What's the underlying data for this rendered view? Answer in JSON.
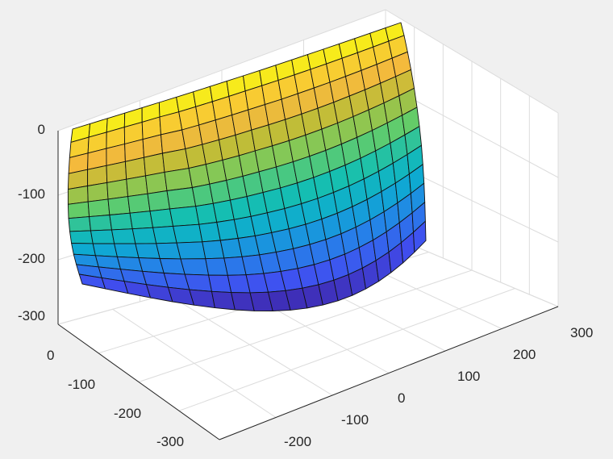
{
  "chart_data": {
    "type": "surface",
    "colormap": "parula",
    "z_axis": {
      "range": [
        -300,
        0
      ],
      "ticks": [
        "0",
        "-100",
        "-200",
        "-300"
      ]
    },
    "x_axis": {
      "range": [
        -300,
        0
      ],
      "ticks": [
        "0",
        "-100",
        "-200",
        "-300"
      ]
    },
    "y_axis": {
      "range": [
        -250,
        300
      ],
      "ticks": [
        "-200",
        "-100",
        "0",
        "100",
        "200",
        "300"
      ]
    },
    "grid": true,
    "surface": {
      "shape": "open bowl / ship-hull shaped mesh",
      "rows": 12,
      "cols": 20,
      "top_z": 0,
      "bottom_z": -300,
      "edge_color": "#000000"
    },
    "background_color": "#f0f0f0",
    "axes_color": "#ffffff"
  }
}
